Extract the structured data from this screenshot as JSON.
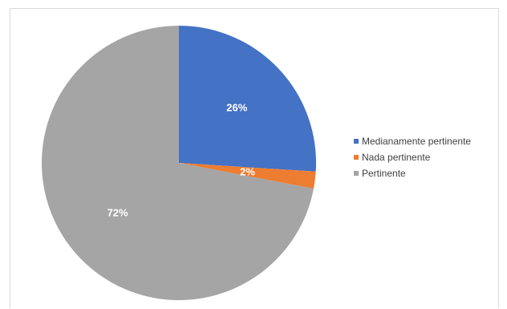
{
  "chart_data": {
    "type": "pie",
    "title": "",
    "slices": [
      {
        "label": "Medianamente pertinente",
        "value": 26,
        "display": "26%",
        "color": "#4472c4"
      },
      {
        "label": "Nada pertinente",
        "value": 2,
        "display": "2%",
        "color": "#ed7d31"
      },
      {
        "label": "Pertinente",
        "value": 72,
        "display": "72%",
        "color": "#a5a5a5"
      }
    ],
    "legend_position": "right",
    "start_angle": "12 o'clock, clockwise"
  }
}
